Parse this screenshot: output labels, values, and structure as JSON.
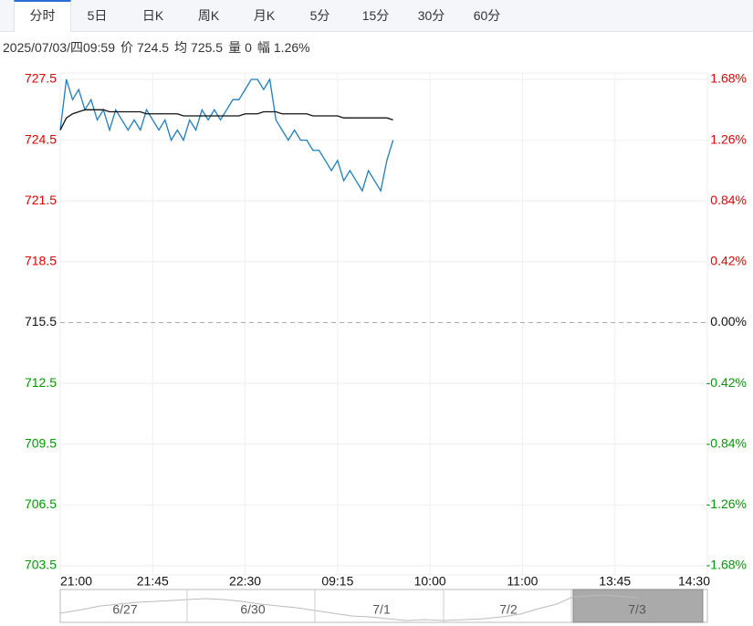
{
  "tabs": [
    "分时",
    "5日",
    "日K",
    "周K",
    "月K",
    "5分",
    "15分",
    "30分",
    "60分"
  ],
  "active_tab": 0,
  "info": {
    "datetime": "2025/07/03/四09:59",
    "items": [
      {
        "label": "价",
        "value": 724.5
      },
      {
        "label": "均",
        "value": 725.5
      },
      {
        "label": "量",
        "value": 0
      },
      {
        "label": "幅",
        "value": "1.26%"
      }
    ]
  },
  "chart_data": {
    "type": "line",
    "x": [
      0,
      3,
      6,
      9,
      12,
      15,
      18,
      21,
      24,
      27,
      30,
      33,
      36,
      39,
      42,
      45,
      48,
      51,
      54,
      57,
      60,
      63,
      66,
      69,
      72,
      75,
      78,
      81,
      84,
      87,
      90,
      93,
      96,
      99,
      102,
      105,
      108,
      111,
      114,
      117,
      120,
      123,
      126,
      129,
      132,
      135,
      138,
      141,
      144,
      147,
      150,
      153,
      156,
      159,
      162
    ],
    "series": [
      {
        "color": "#1f7ec1",
        "values": [
          725.0,
          727.5,
          726.5,
          727.0,
          726.0,
          726.5,
          725.5,
          726.0,
          725.0,
          726.0,
          725.5,
          725.0,
          725.5,
          725.0,
          726.0,
          725.5,
          725.0,
          725.5,
          724.5,
          725.0,
          724.5,
          725.5,
          725.0,
          726.0,
          725.5,
          726.0,
          725.5,
          726.0,
          726.5,
          726.5,
          727.0,
          727.5,
          727.5,
          727.0,
          727.5,
          725.5,
          725.0,
          724.5,
          725.0,
          724.5,
          724.5,
          724.0,
          724.0,
          723.5,
          723.0,
          723.5,
          722.5,
          723.0,
          722.5,
          722.0,
          723.0,
          722.5,
          722.0,
          723.5,
          724.5
        ]
      },
      {
        "color": "#111111",
        "values": [
          725.0,
          725.6,
          725.8,
          725.9,
          726.0,
          726.0,
          726.0,
          726.0,
          725.9,
          725.9,
          725.9,
          725.9,
          725.9,
          725.9,
          725.8,
          725.8,
          725.8,
          725.8,
          725.8,
          725.8,
          725.7,
          725.7,
          725.7,
          725.7,
          725.7,
          725.7,
          725.7,
          725.7,
          725.7,
          725.7,
          725.8,
          725.8,
          725.8,
          725.9,
          725.9,
          725.9,
          725.8,
          725.8,
          725.8,
          725.8,
          725.8,
          725.7,
          725.7,
          725.7,
          725.7,
          725.7,
          725.6,
          725.6,
          725.6,
          725.6,
          725.6,
          725.6,
          725.6,
          725.6,
          725.5
        ]
      }
    ],
    "xlim": [
      0,
      315
    ],
    "xticks": [
      {
        "value": 0,
        "label": "21:00"
      },
      {
        "value": 45,
        "label": "21:45"
      },
      {
        "value": 90,
        "label": "22:30"
      },
      {
        "value": 135,
        "label": "09:15"
      },
      {
        "value": 180,
        "label": "10:00"
      },
      {
        "value": 225,
        "label": "11:00"
      },
      {
        "value": 270,
        "label": "13:45"
      },
      {
        "value": 315,
        "label": "14:30"
      }
    ],
    "ylim": [
      703.5,
      727.5
    ],
    "yticks": [
      727.5,
      724.5,
      721.5,
      718.5,
      715.5,
      712.5,
      709.5,
      706.5,
      703.5
    ],
    "y2lim": [
      -1.68,
      1.68
    ],
    "y2ticks": [
      {
        "value": 1.68,
        "label": "1.68%"
      },
      {
        "value": 1.26,
        "label": "1.26%"
      },
      {
        "value": 0.84,
        "label": "0.84%"
      },
      {
        "value": 0.42,
        "label": "0.42%"
      },
      {
        "value": 0,
        "label": "0.00%"
      },
      {
        "value": -0.42,
        "label": "-0.42%"
      },
      {
        "value": -0.84,
        "label": "-0.84%"
      },
      {
        "value": -1.26,
        "label": "-1.26%"
      },
      {
        "value": -1.68,
        "label": "-1.68%"
      }
    ],
    "up_color": "#e60000",
    "down_color": "#009900",
    "grid": true
  },
  "navigator": {
    "dates": [
      "6/27",
      "6/30",
      "7/1",
      "7/2",
      "7/3"
    ]
  }
}
